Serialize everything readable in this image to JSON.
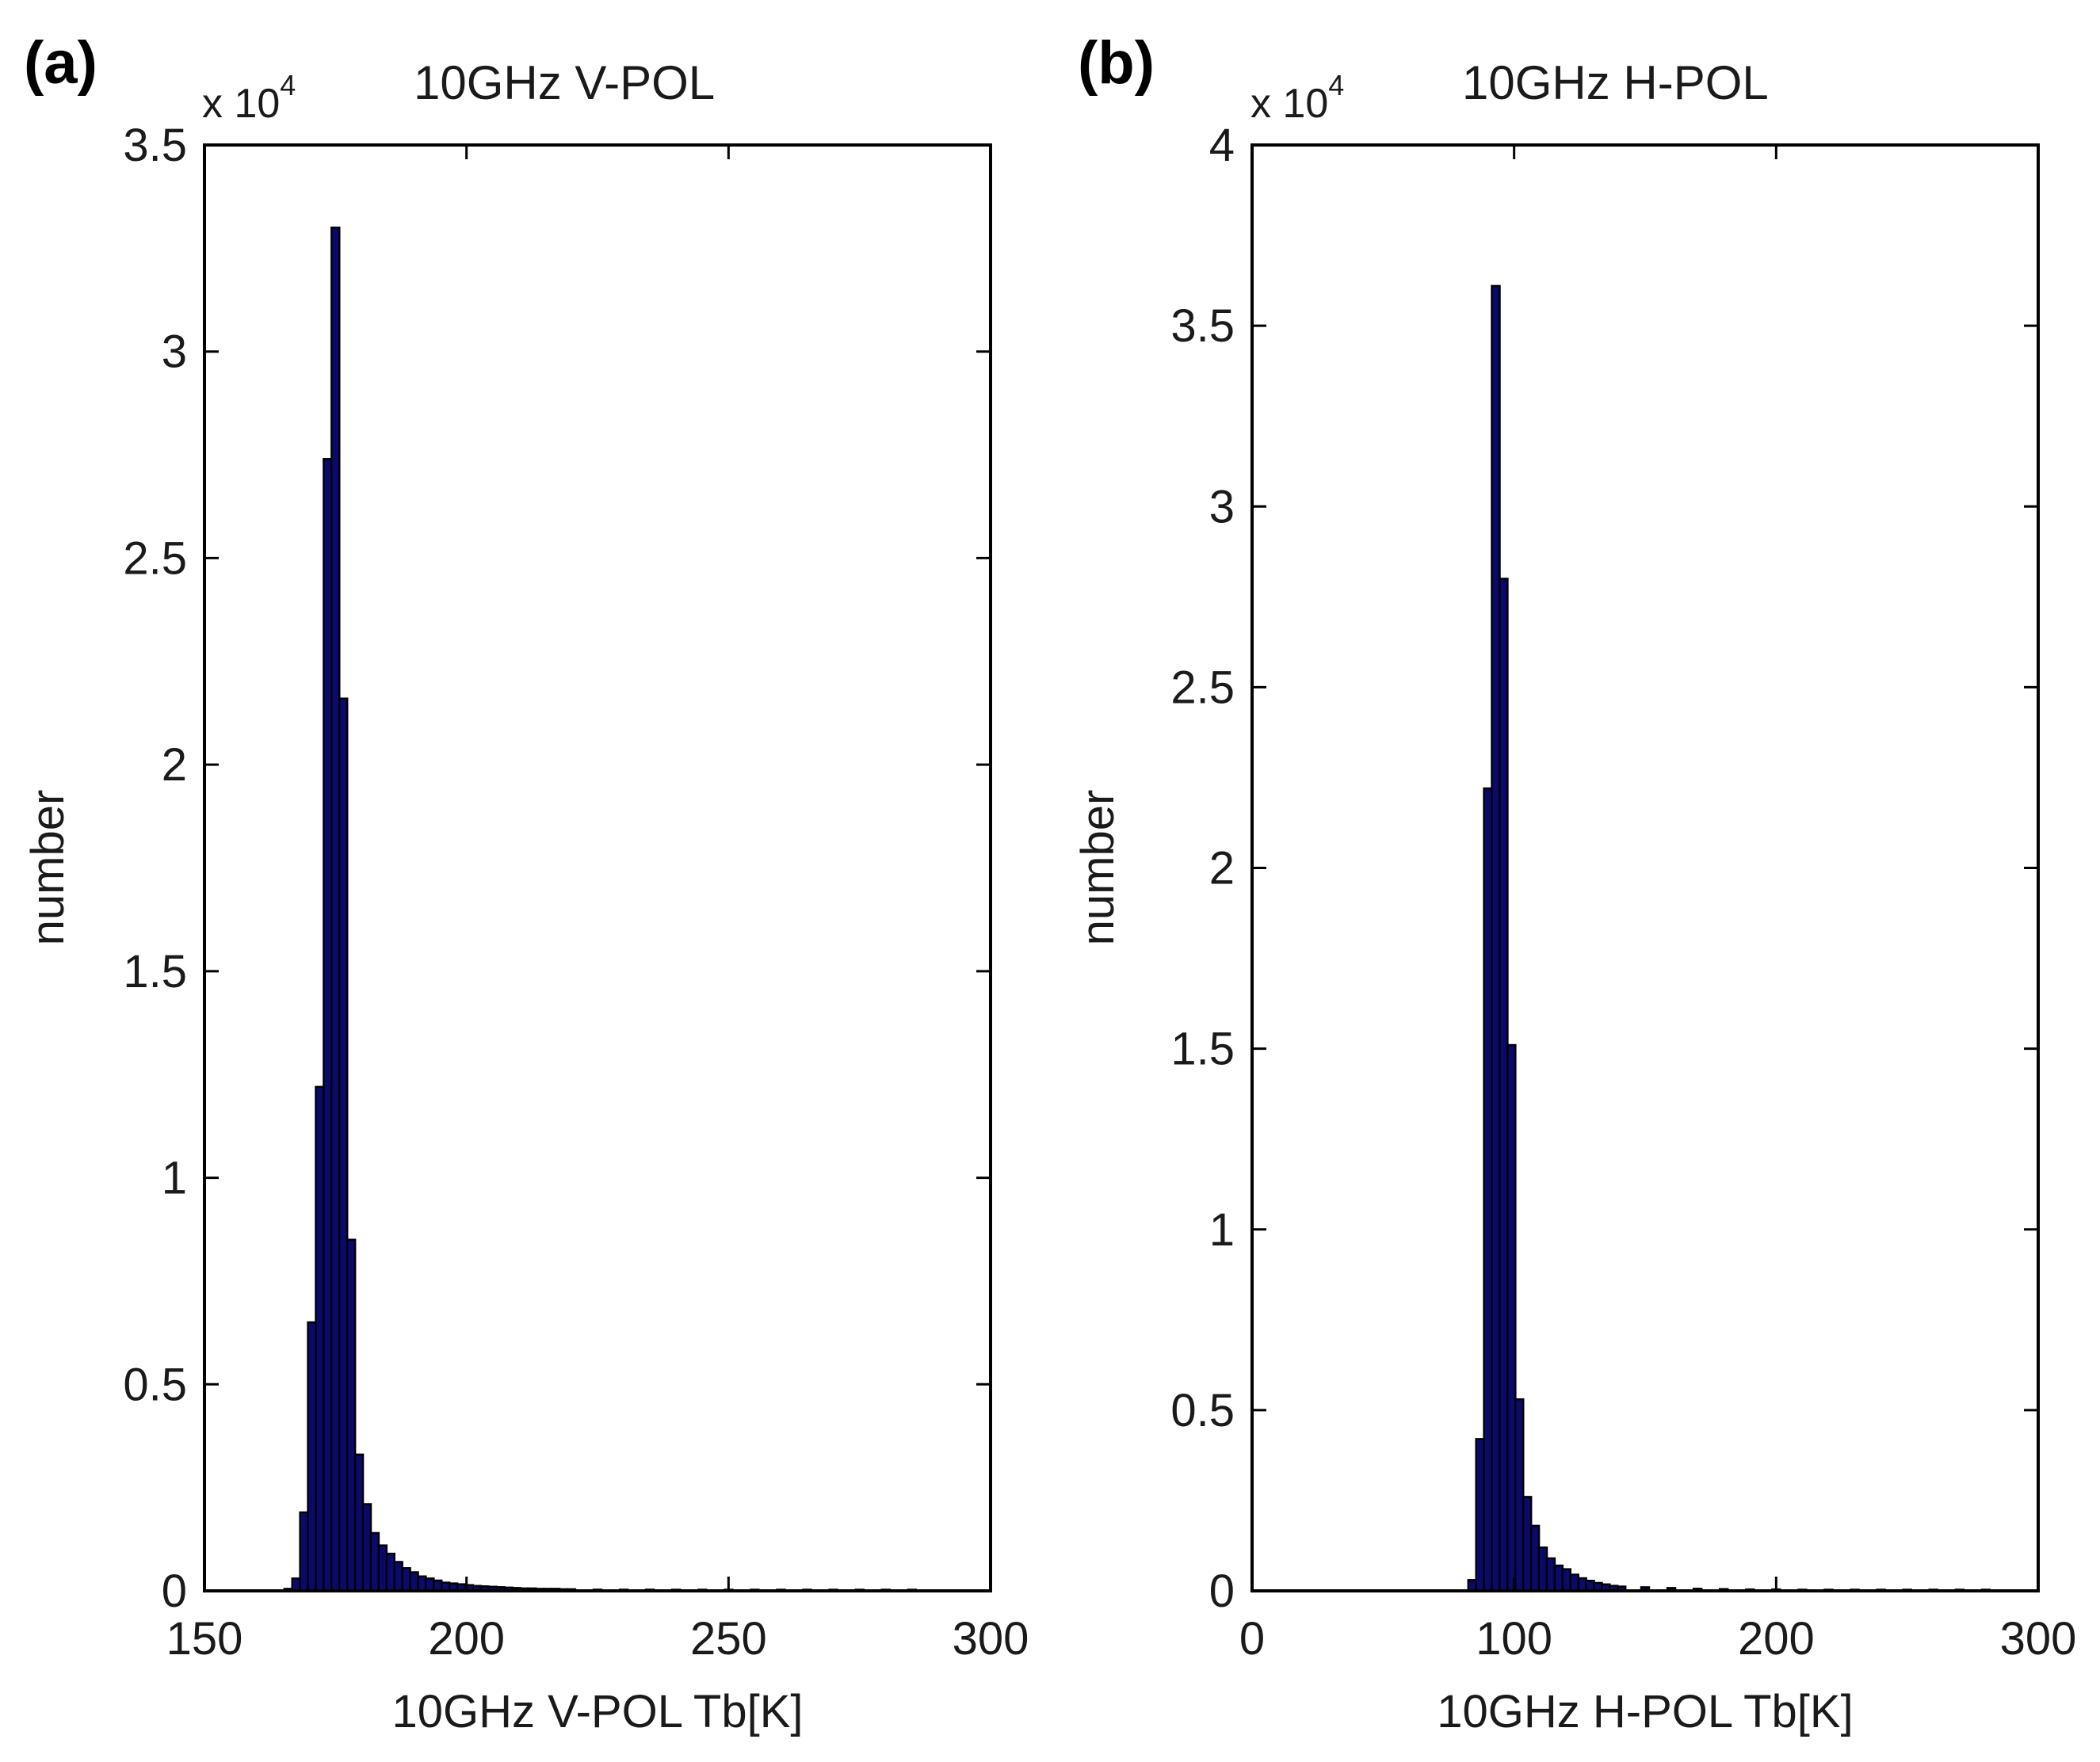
{
  "chart_data": [
    {
      "type": "bar",
      "panel_label": "(a)",
      "title": "10GHz V-POL",
      "xlabel": "10GHz V-POL Tb[K]",
      "ylabel": "number",
      "y_multiplier": {
        "base": "x 10",
        "exponent": "4"
      },
      "xlim": [
        150,
        300
      ],
      "ylim": [
        0,
        3.5
      ],
      "xticks": [
        "150",
        "200",
        "250",
        "300"
      ],
      "yticks": [
        "0",
        "0.5",
        "1",
        "1.5",
        "2",
        "2.5",
        "3",
        "3.5"
      ],
      "bar_color": "#0a0a6e",
      "bin_width": 1.5,
      "x": [
        166,
        167.5,
        169,
        170.5,
        172,
        173.5,
        175,
        176.5,
        178,
        179.5,
        181,
        182.5,
        184,
        185.5,
        187,
        188.5,
        190,
        191.5,
        193,
        194.5,
        196,
        197.5,
        199,
        200.5,
        202,
        203.5,
        205,
        206.5,
        208,
        209.5,
        211,
        212.5,
        214,
        215.5,
        217,
        218.5,
        220,
        225,
        230,
        235,
        240,
        245,
        250,
        255,
        260,
        265,
        270,
        275,
        280,
        285
      ],
      "values": [
        0.005,
        0.03,
        0.19,
        0.65,
        1.22,
        2.74,
        3.3,
        2.16,
        0.85,
        0.33,
        0.21,
        0.14,
        0.11,
        0.09,
        0.07,
        0.055,
        0.045,
        0.035,
        0.03,
        0.025,
        0.02,
        0.018,
        0.016,
        0.014,
        0.012,
        0.011,
        0.01,
        0.009,
        0.008,
        0.007,
        0.006,
        0.006,
        0.005,
        0.005,
        0.005,
        0.004,
        0.004,
        0.003,
        0.003,
        0.003,
        0.002,
        0.002,
        0.002,
        0.002,
        0.002,
        0.002,
        0.002,
        0.002,
        0.002,
        0.002
      ]
    },
    {
      "type": "bar",
      "panel_label": "(b)",
      "title": "10GHz H-POL",
      "xlabel": "10GHz H-POL Tb[K]",
      "ylabel": "number",
      "y_multiplier": {
        "base": "x 10",
        "exponent": "4"
      },
      "xlim": [
        0,
        300
      ],
      "ylim": [
        0,
        4
      ],
      "xticks": [
        "0",
        "100",
        "200",
        "300"
      ],
      "yticks": [
        "0",
        "0.5",
        "1",
        "1.5",
        "2",
        "2.5",
        "3",
        "3.5",
        "4"
      ],
      "bar_color": "#0a0a6e",
      "bin_width": 3,
      "x": [
        84,
        87,
        90,
        93,
        96,
        99,
        102,
        105,
        108,
        111,
        114,
        117,
        120,
        123,
        126,
        129,
        132,
        135,
        138,
        141,
        150,
        160,
        170,
        180,
        190,
        200,
        210,
        220,
        230,
        240,
        250,
        260,
        270,
        280
      ],
      "values": [
        0.03,
        0.42,
        2.22,
        3.61,
        2.8,
        1.51,
        0.53,
        0.26,
        0.18,
        0.12,
        0.09,
        0.07,
        0.06,
        0.045,
        0.035,
        0.028,
        0.022,
        0.018,
        0.014,
        0.012,
        0.01,
        0.008,
        0.006,
        0.005,
        0.004,
        0.004,
        0.003,
        0.003,
        0.003,
        0.002,
        0.002,
        0.002,
        0.002,
        0.002
      ]
    }
  ]
}
